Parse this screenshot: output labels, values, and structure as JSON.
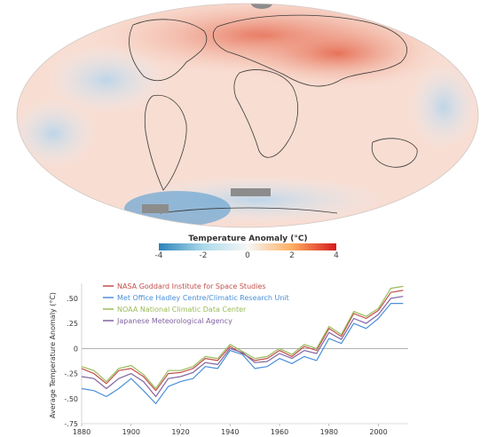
{
  "map": {
    "colorbar": {
      "title": "Temperature Anomaly (°C)",
      "ticks": [
        "-4",
        "-2",
        "0",
        "2",
        "4"
      ],
      "colors": [
        "#2b83ba",
        "#abd9e9",
        "#f7f7f7",
        "#fdae61",
        "#d7191c"
      ]
    }
  },
  "chart_data": {
    "type": "line",
    "ylabel": "Average Temperature Anomaly (°C)",
    "xlabel": "",
    "xlim": [
      1880,
      2012
    ],
    "ylim": [
      -0.75,
      0.65
    ],
    "x_ticks": [
      "1880",
      "1900",
      "1920",
      "1940",
      "1960",
      "1980",
      "2000"
    ],
    "y_ticks": [
      ".50",
      ".25",
      "0",
      "-.25",
      "-.50",
      "-.75"
    ],
    "legend_position": "top-left",
    "x": [
      1880,
      1885,
      1890,
      1895,
      1900,
      1905,
      1910,
      1915,
      1920,
      1925,
      1930,
      1935,
      1940,
      1945,
      1950,
      1955,
      1960,
      1965,
      1970,
      1975,
      1980,
      1985,
      1990,
      1995,
      2000,
      2005,
      2010
    ],
    "series": [
      {
        "name": "NASA Goddard Institute for Space Studies",
        "color": "#c0504d",
        "values": [
          -0.2,
          -0.25,
          -0.35,
          -0.22,
          -0.2,
          -0.28,
          -0.42,
          -0.25,
          -0.24,
          -0.2,
          -0.1,
          -0.12,
          0.02,
          -0.05,
          -0.12,
          -0.1,
          -0.02,
          -0.08,
          0.02,
          -0.02,
          0.2,
          0.12,
          0.35,
          0.3,
          0.38,
          0.56,
          0.58
        ]
      },
      {
        "name": "Met Office Hadley Centre/Climatic Research Unit",
        "color": "#4a90d9",
        "values": [
          -0.4,
          -0.42,
          -0.48,
          -0.4,
          -0.3,
          -0.42,
          -0.55,
          -0.38,
          -0.33,
          -0.3,
          -0.18,
          -0.2,
          -0.02,
          -0.06,
          -0.2,
          -0.18,
          -0.1,
          -0.15,
          -0.08,
          -0.12,
          0.1,
          0.05,
          0.25,
          0.2,
          0.3,
          0.45,
          0.45
        ]
      },
      {
        "name": "NOAA National Climatic Data Center",
        "color": "#9bbb59",
        "values": [
          -0.18,
          -0.22,
          -0.33,
          -0.2,
          -0.17,
          -0.26,
          -0.4,
          -0.22,
          -0.22,
          -0.18,
          -0.08,
          -0.1,
          0.04,
          -0.03,
          -0.1,
          -0.08,
          0.0,
          -0.06,
          0.04,
          0.0,
          0.22,
          0.14,
          0.37,
          0.32,
          0.4,
          0.6,
          0.62
        ]
      },
      {
        "name": "Japanese Meteorological Agency",
        "color": "#8064a2",
        "values": [
          -0.28,
          -0.3,
          -0.4,
          -0.3,
          -0.25,
          -0.33,
          -0.48,
          -0.3,
          -0.28,
          -0.24,
          -0.14,
          -0.16,
          0.0,
          -0.04,
          -0.14,
          -0.13,
          -0.05,
          -0.1,
          -0.02,
          -0.05,
          0.16,
          0.09,
          0.3,
          0.25,
          0.34,
          0.5,
          0.52
        ]
      }
    ]
  }
}
